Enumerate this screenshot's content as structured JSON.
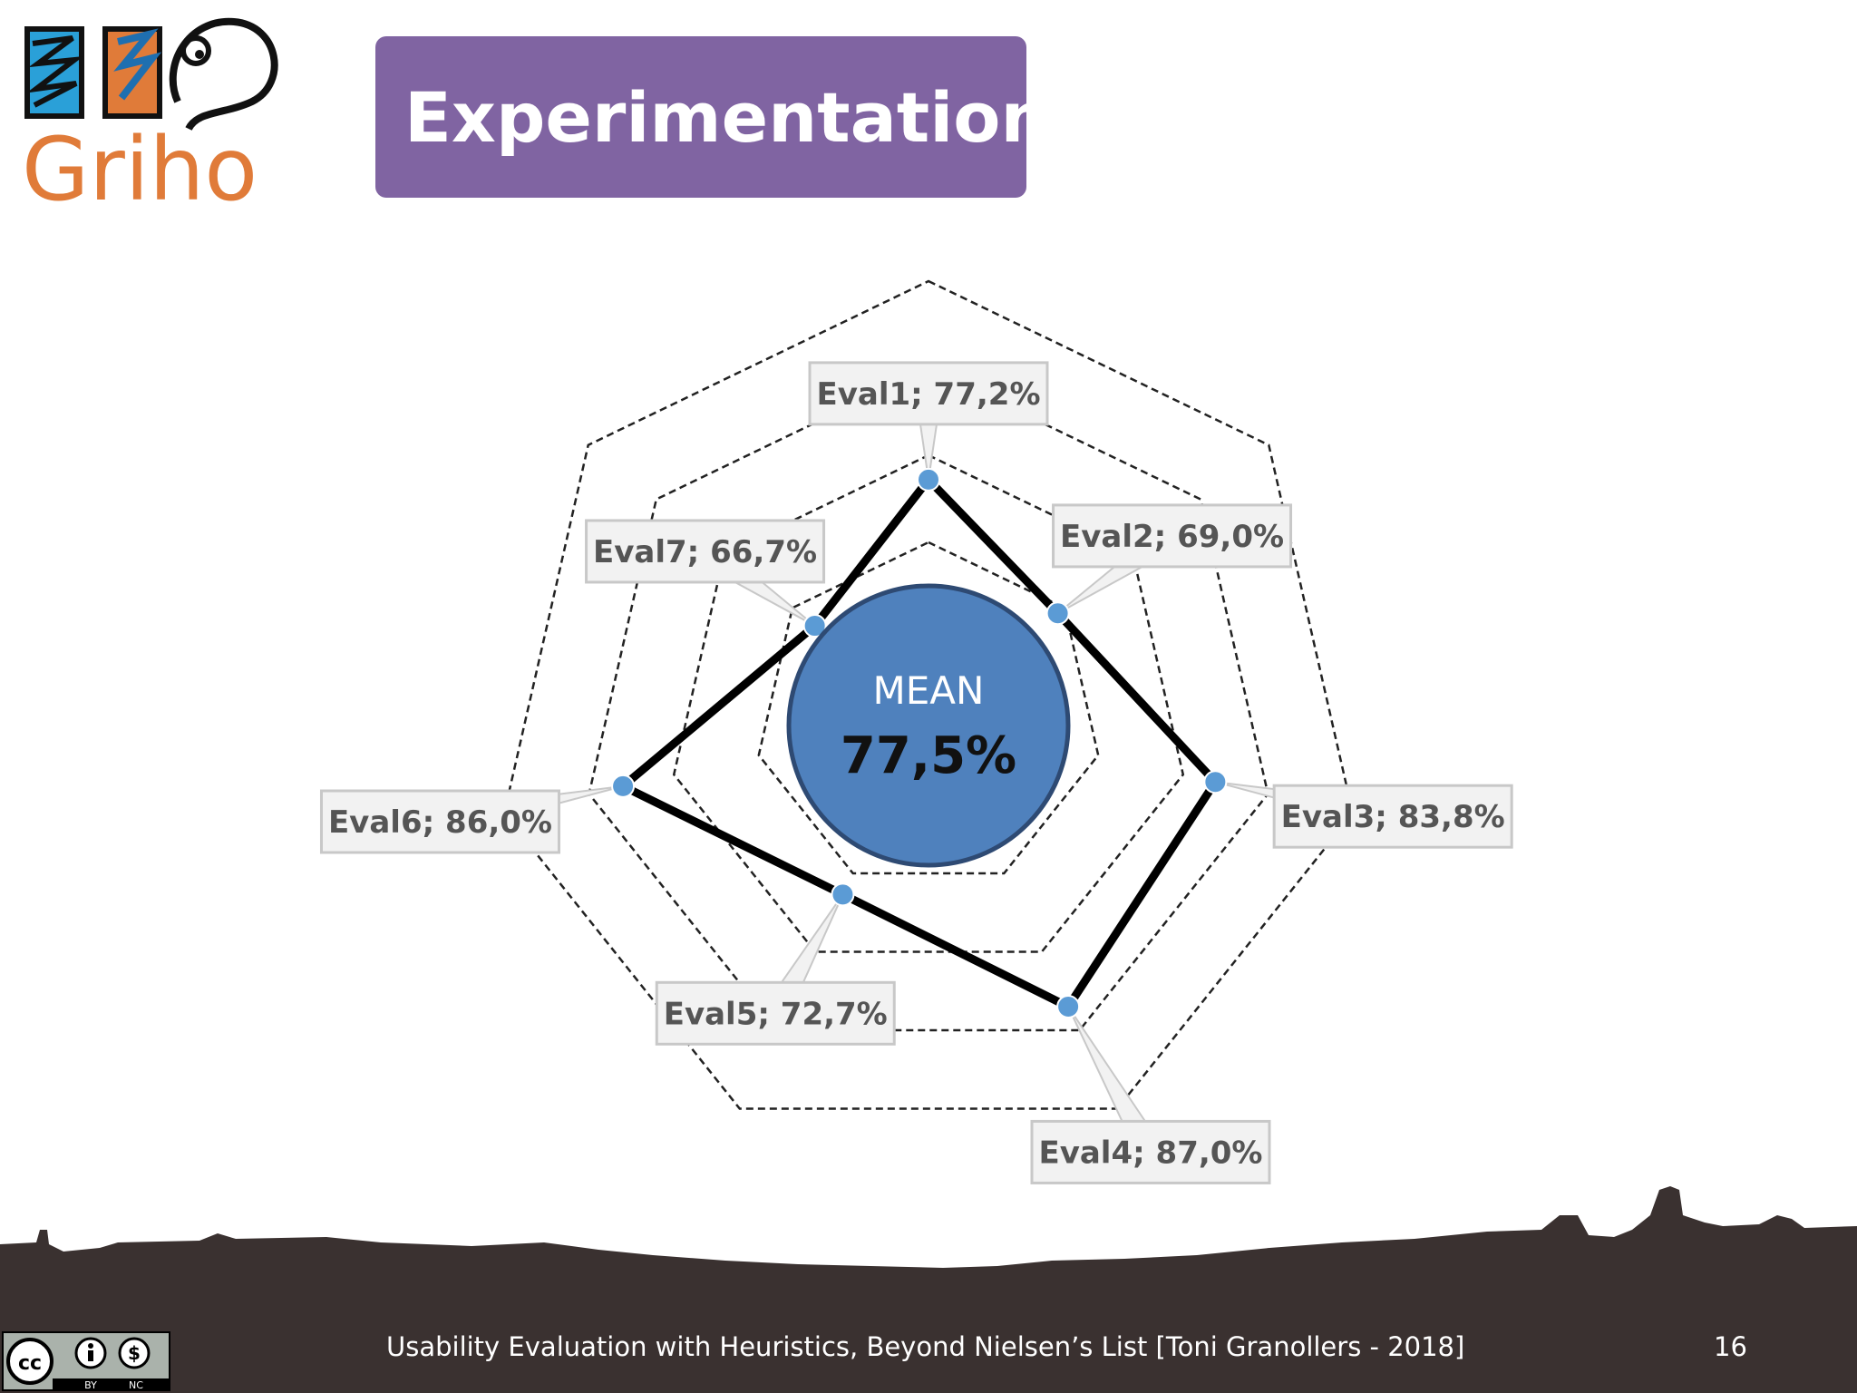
{
  "slide": {
    "title": "Experimentation",
    "logo_text": "Griho",
    "footer": "Usability Evaluation with Heuristics, Beyond Nielsen’s List     [Toni Granollers - 2018]",
    "page_number": "16",
    "license": {
      "icon": "cc-by-nc-icon",
      "labels": [
        "BY",
        "NC"
      ]
    }
  },
  "chart_data": {
    "type": "radar",
    "categories": [
      "Eval1",
      "Eval2",
      "Eval3",
      "Eval4",
      "Eval5",
      "Eval6",
      "Eval7"
    ],
    "values": [
      77.2,
      69.0,
      83.8,
      87.0,
      72.7,
      86.0,
      66.7
    ],
    "value_labels": [
      "Eval1; 77,2%",
      "Eval2; 69,0%",
      "Eval3; 83,8%",
      "Eval4; 87,0%",
      "Eval5; 72,7%",
      "Eval6; 86,0%",
      "Eval7; 66,7%"
    ],
    "unit": "%",
    "grid": true,
    "grid_style": "dashed",
    "center_label": {
      "title": "MEAN",
      "value": "77,5%"
    },
    "colors": {
      "series_line": "#000000",
      "marker": "#5b9bd5",
      "center": "#4f81bd",
      "title_bg": "#8064a2",
      "logo_orange": "#e07b39",
      "skyline": "#3a3130"
    }
  }
}
